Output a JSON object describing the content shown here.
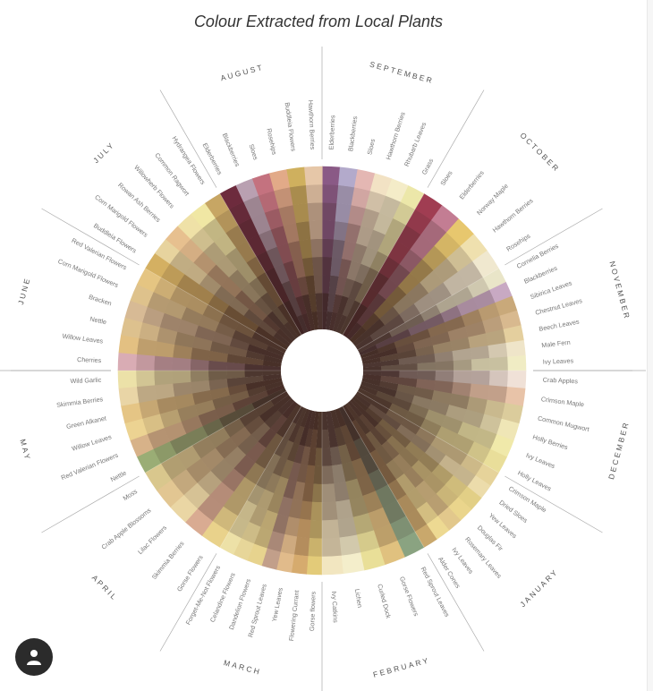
{
  "chart_data": {
    "type": "radial",
    "title": "Colour Extracted from Local Plants",
    "months": [
      {
        "name": "SEPTEMBER",
        "start": 0,
        "end": 30,
        "plants": [
          "Elderberries",
          "Blackberries",
          "Sloes",
          "Hawthorn Berries",
          "Rhubarb Leaves",
          "Grass"
        ]
      },
      {
        "name": "OCTOBER",
        "start": 30,
        "end": 60,
        "plants": [
          "Sloes",
          "Elderberries",
          "Norway Maple",
          "Hawthorn Berries",
          "Rosehips"
        ]
      },
      {
        "name": "NOVEMBER",
        "start": 60,
        "end": 90,
        "plants": [
          "Cornelia Berries",
          "Blackberries",
          "Sibirica Leaves",
          "Chestnut Leaves",
          "Beech Leaves",
          "Male Fern",
          "Ivy Leaves"
        ]
      },
      {
        "name": "DECEMBER",
        "start": 90,
        "end": 120,
        "plants": [
          "Crab Apples",
          "Crimson Maple",
          "Common Mugwort",
          "Holly Berries",
          "Ivy Leaves",
          "Holly Leaves"
        ]
      },
      {
        "name": "JANUARY",
        "start": 120,
        "end": 150,
        "plants": [
          "Crimson Maple",
          "Dried Sloes",
          "Yew Leaves",
          "Douglas Fir",
          "Rosemary Leaves",
          "Ivy Leaves",
          "Alder Cones"
        ]
      },
      {
        "name": "FEBRUARY",
        "start": 150,
        "end": 180,
        "plants": [
          "Red Sprout Leaves",
          "Gorse Flowers",
          "Curled Dock",
          "Lichen",
          "Ivy Catkins"
        ]
      },
      {
        "name": "MARCH",
        "start": 180,
        "end": 210,
        "plants": [
          "Gorse flowers",
          "Flowering Currant",
          "Yew Leaves",
          "Red Sprout Leaves",
          "Dandelion Flowers",
          "Celandine Flowers",
          "Forget-Me-Not Flowers"
        ]
      },
      {
        "name": "APRIL",
        "start": 210,
        "end": 240,
        "plants": [
          "Gorse Flowers",
          "Skimmia Berries",
          "Lilac Flowers",
          "Crab Apple Blossoms",
          "Moss"
        ]
      },
      {
        "name": "MAY",
        "start": 240,
        "end": 270,
        "plants": [
          "Nettle",
          "Red Valerian Flowers",
          "Willow Leaves",
          "Green Alkanet",
          "Skimmia Berries",
          "Wild Garlic"
        ]
      },
      {
        "name": "JUNE",
        "start": 270,
        "end": 300,
        "plants": [
          "Cherries",
          "Willow Leaves",
          "Nettle",
          "Bracken",
          "Corn Marigold Flowers",
          "Red Valerian Flowers"
        ]
      },
      {
        "name": "JULY",
        "start": 300,
        "end": 330,
        "plants": [
          "Buddleia Flowers",
          "Corn Marigold Flowers",
          "Rowan Ash Berries",
          "Willowherb Flowers",
          "Common Ragwort",
          "Hydrangea Flowers"
        ]
      },
      {
        "name": "AUGUST",
        "start": 330,
        "end": 360,
        "plants": [
          "Elderberries",
          "Blackberries",
          "Sloes",
          "Rosehips",
          "Buddleia Flowers",
          "Hawthorn Berries"
        ]
      }
    ],
    "colors": {
      "SEPTEMBER": [
        "#8a5a86",
        "#b3aacb",
        "#e4b7b3",
        "#f2e2c4",
        "#f4ecc8",
        "#ece7a9"
      ],
      "OCTOBER": [
        "#a03d52",
        "#c37d93",
        "#e7c76e",
        "#efe0ae",
        "#f0e8cf"
      ],
      "NOVEMBER": [
        "#e9e5c8",
        "#c8a9c3",
        "#c9a97a",
        "#d8b98f",
        "#e4cf9e",
        "#efe5c9",
        "#f0ecc4"
      ],
      "DECEMBER": [
        "#f0e1d7",
        "#e8c3a8",
        "#dbcc9c",
        "#efe6b6",
        "#f0e9aa",
        "#e9de9a"
      ],
      "JANUARY": [
        "#e6d39a",
        "#ecdcab",
        "#e2cf86",
        "#ead58c",
        "#e2c88c",
        "#edd992",
        "#c9a86c"
      ],
      "FEBRUARY": [
        "#8aa381",
        "#e0c17f",
        "#e9df98",
        "#f4eecb",
        "#f2e6c0"
      ],
      "MARCH": [
        "#e3cb79",
        "#d6ab6e",
        "#e1bb8b",
        "#c29f8a",
        "#e7d38e",
        "#e7d699",
        "#ede1a7"
      ],
      "APRIL": [
        "#e9d28b",
        "#d9ab92",
        "#ead6a4",
        "#e2c692",
        "#d9c78d"
      ],
      "MAY": [
        "#9aad75",
        "#d7b289",
        "#ecd392",
        "#e5c585",
        "#e9d5a6",
        "#ece1a8"
      ],
      "JUNE": [
        "#d9acb4",
        "#e3c082",
        "#ddc18e",
        "#d7ba95",
        "#dec28c",
        "#e5c582"
      ],
      "JULY": [
        "#d4b062",
        "#e7d39e",
        "#e7c08f",
        "#efe1a7",
        "#f0e7a4",
        "#c7a664"
      ],
      "AUGUST": [
        "#6d2b3d",
        "#b9a0b1",
        "#c4727f",
        "#e2aa88",
        "#cfb05e",
        "#e6c7a8"
      ]
    },
    "center_color": "#3a2320",
    "rings": 9
  },
  "profile": {
    "icon": "user-icon"
  }
}
